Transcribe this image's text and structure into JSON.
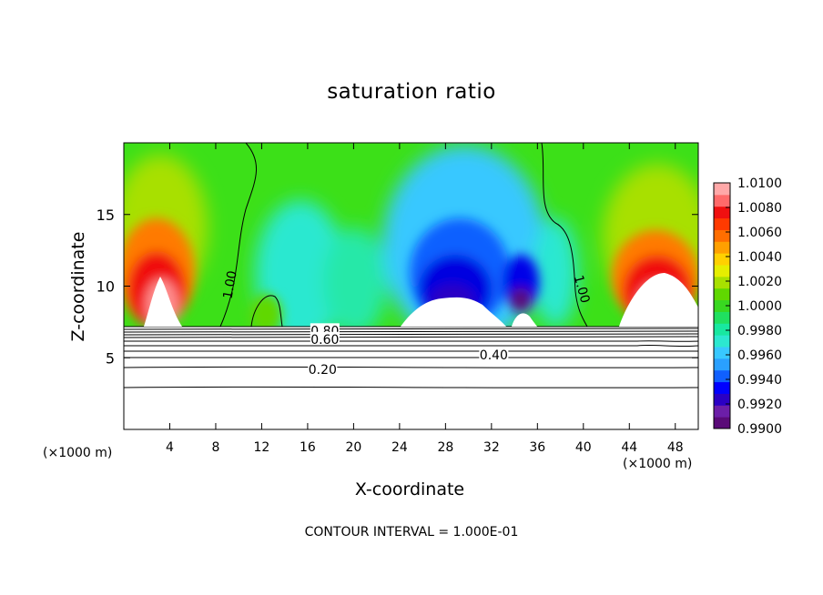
{
  "chart_data": {
    "type": "heatmap",
    "title": "saturation ratio",
    "xlabel": "X-coordinate",
    "ylabel": "Z-coordinate",
    "x_unit_label": "(×1000 m)",
    "xlim": [
      0,
      50
    ],
    "ylim": [
      0,
      20
    ],
    "x_ticks": [
      4,
      8,
      12,
      16,
      20,
      24,
      28,
      32,
      36,
      40,
      44,
      48
    ],
    "x_tick_labels": [
      "4",
      "8",
      "12",
      "16",
      "20",
      "24",
      "28",
      "32",
      "36",
      "40",
      "44",
      "48"
    ],
    "y_ticks": [
      5,
      10,
      15
    ],
    "y_tick_labels": [
      "5",
      "10",
      "15"
    ],
    "colorbar": {
      "min": 0.99,
      "max": 1.01,
      "labels": [
        "1.0100",
        "1.0080",
        "1.0060",
        "1.0040",
        "1.0020",
        "1.0000",
        "0.9980",
        "0.9960",
        "0.9940",
        "0.9920",
        "0.9900"
      ],
      "colors": [
        "#5a0a78",
        "#6c1ea8",
        "#2a00c4",
        "#0000ff",
        "#1060ff",
        "#2aa0ff",
        "#38c8ff",
        "#2ce8d0",
        "#18e8a0",
        "#20e060",
        "#38d820",
        "#60d800",
        "#a8e000",
        "#e6ee00",
        "#ffd000",
        "#ffa000",
        "#ff6e00",
        "#ff3a00",
        "#f01010",
        "#ff6a6a",
        "#ffa8a8"
      ]
    },
    "contour_labels": [
      {
        "text": "1.00",
        "x": 9.2,
        "z": 10.1
      },
      {
        "text": "1.00",
        "x": 39.9,
        "z": 9.8
      },
      {
        "text": "0.80",
        "x": 17.5,
        "z": 6.9
      },
      {
        "text": "0.60",
        "x": 17.5,
        "z": 6.3
      },
      {
        "text": "0.40",
        "x": 32.2,
        "z": 5.2
      },
      {
        "text": "0.20",
        "x": 17.3,
        "z": 4.2
      }
    ],
    "annotation": "CONTOUR INTERVAL = 1.000E-01"
  }
}
